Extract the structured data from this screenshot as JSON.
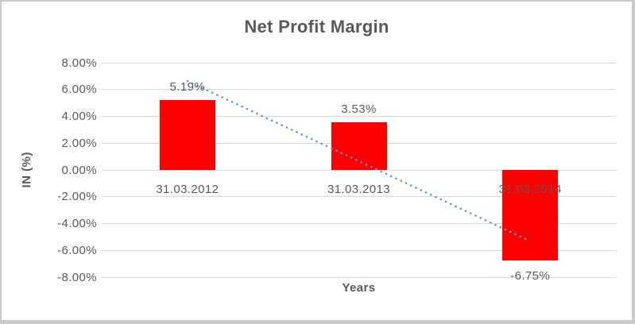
{
  "chart_data": {
    "type": "bar",
    "title": "Net Profit Margin",
    "xlabel": "Years",
    "ylabel": "IN (%)",
    "categories": [
      "31.03.2012",
      "31.03.2013",
      "31.03.2014"
    ],
    "series": [
      {
        "name": "Net Profit Margin",
        "values": [
          5.19,
          3.53,
          -6.75
        ],
        "data_labels": [
          "5.19%",
          "3.53%",
          "-6.75%"
        ],
        "color": "#FF0000"
      }
    ],
    "ylim": [
      -8,
      8
    ],
    "yticks": [
      {
        "value": 8,
        "label": "8.00%"
      },
      {
        "value": 6,
        "label": "6.00%"
      },
      {
        "value": 4,
        "label": "4.00%"
      },
      {
        "value": 2,
        "label": "2.00%"
      },
      {
        "value": 0,
        "label": "0.00%"
      },
      {
        "value": -2,
        "label": "-2.00%"
      },
      {
        "value": -4,
        "label": "-4.00%"
      },
      {
        "value": -6,
        "label": "-6.00%"
      },
      {
        "value": -8,
        "label": "-8.00%"
      }
    ],
    "grid": true,
    "legend": false,
    "trendline": {
      "type": "linear",
      "style": "dotted",
      "color": "#5B9BD5",
      "start_value": 6.63,
      "end_value": -5.31
    },
    "colors": {
      "text": "#595959",
      "gridline": "#D9D9D9",
      "background": "#FFFFFF",
      "border": "#C9C9C9"
    }
  }
}
